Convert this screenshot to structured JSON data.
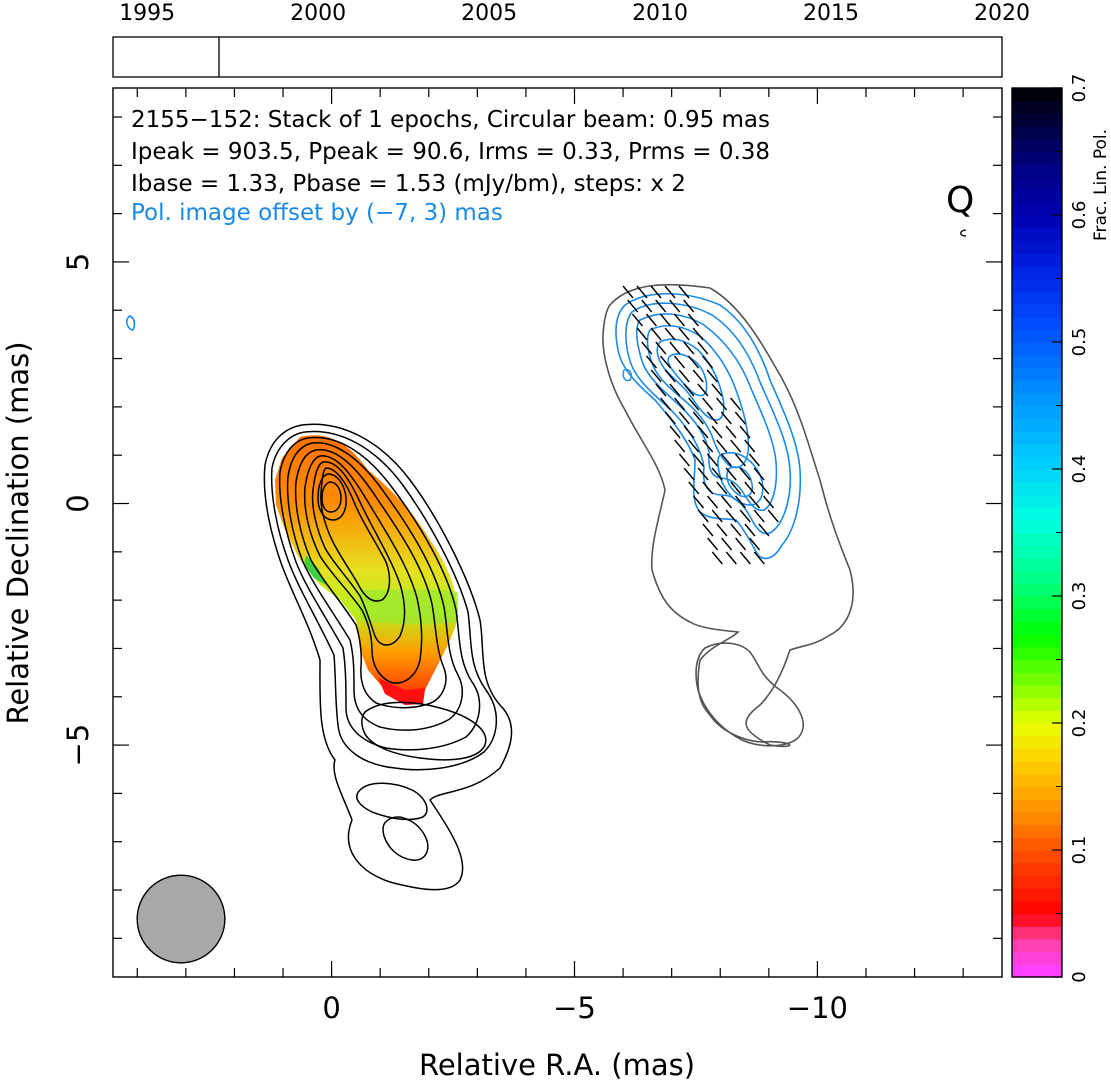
{
  "chart_data": {
    "type": "image",
    "timeline": {
      "tick_labels": [
        "1995",
        "2000",
        "2005",
        "2010",
        "2015",
        "2020"
      ],
      "tick_values": [
        1995,
        2000,
        2005,
        2010,
        2015,
        2020
      ],
      "range": [
        1994,
        2020
      ],
      "epoch_markers": [
        1997.1
      ]
    },
    "header_lines": [
      "2155−152: Stack of 1 epochs, Circular beam: 0.95 mas",
      "Ipeak = 903.5, Ppeak = 90.6, Irms = 0.33, Prms = 0.38",
      "Ibase = 1.33, Pbase = 1.53 (mJy/bm), steps: x 2"
    ],
    "offset_note": "Pol. image offset by (−7, 3) mas",
    "quality_flag": "Q",
    "xlabel": "Relative R.A. (mas)",
    "ylabel": "Relative Declination (mas)",
    "xlim": [
      4.5,
      -13.8
    ],
    "ylim": [
      -9.8,
      8.6
    ],
    "x_tick_labels": [
      "0",
      "−5",
      "−10"
    ],
    "x_tick_values": [
      0,
      -5,
      -10
    ],
    "y_tick_labels": [
      "−5",
      "0",
      "5"
    ],
    "y_tick_values": [
      -5,
      0,
      5
    ],
    "beam": {
      "center": [
        3.1,
        -8.6
      ],
      "diameter_mas": 0.95
    },
    "colorbar": {
      "label": "Frac. Lin. Pol.",
      "range": [
        0,
        0.7
      ],
      "tick_labels": [
        "0",
        "0.1",
        "0.2",
        "0.3",
        "0.4",
        "0.5",
        "0.6",
        "0.7"
      ],
      "tick_values": [
        0,
        0.1,
        0.2,
        0.3,
        0.4,
        0.5,
        0.6,
        0.7
      ]
    },
    "colors": {
      "total_intensity_contour": "#000000",
      "pol_contour": "#1a8ae6",
      "pol_outline": "#555555",
      "beam_fill": "#a8a8a8",
      "offset_note": "#1a8ae6",
      "evpa_tick": "#000000"
    },
    "core_peak": [
      0,
      0
    ]
  }
}
